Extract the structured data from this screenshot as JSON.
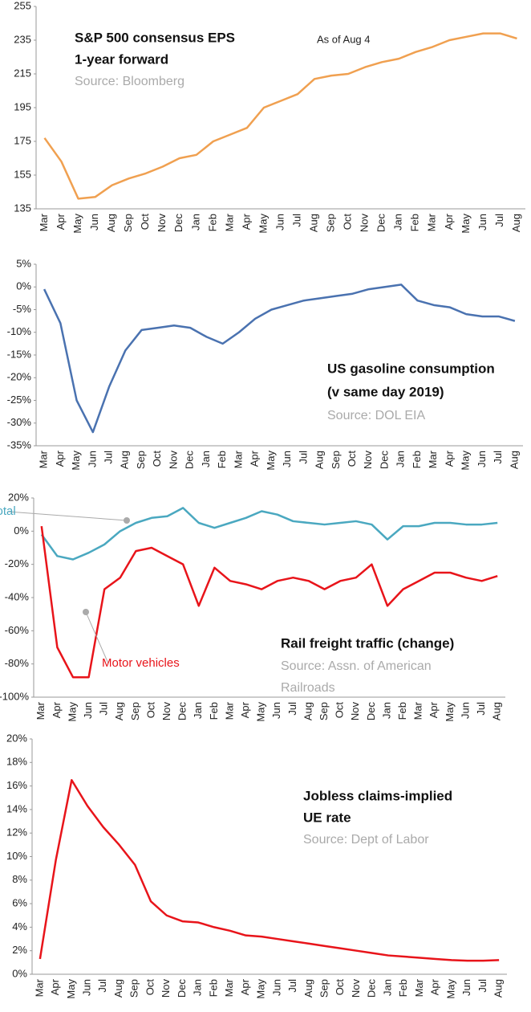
{
  "chart_data": [
    {
      "type": "line",
      "title": [
        "S&P 500 consensus EPS",
        "1-year forward"
      ],
      "source": "Source: Bloomberg",
      "note": "As of Aug 4",
      "categories": [
        "Mar",
        "Apr",
        "May",
        "Jun",
        "Aug",
        "Sep",
        "Oct",
        "Nov",
        "Dec",
        "Jan",
        "Feb",
        "Mar",
        "Apr",
        "May",
        "Jun",
        "Jul",
        "Aug",
        "Sep",
        "Oct",
        "Nov",
        "Dec",
        "Jan",
        "Feb",
        "Mar",
        "Apr",
        "May",
        "Jun",
        "Jul",
        "Aug"
      ],
      "values": [
        177,
        163,
        141,
        142,
        149,
        153,
        156,
        160,
        165,
        167,
        175,
        179,
        183,
        195,
        199,
        203,
        212,
        214,
        215,
        219,
        222,
        224,
        228,
        231,
        235,
        237,
        239,
        239,
        236
      ],
      "color": "#f0a050",
      "ylim": [
        135,
        255
      ],
      "yticks": [
        135,
        155,
        175,
        195,
        215,
        235,
        255
      ]
    },
    {
      "type": "line",
      "title": [
        "US gasoline consumption",
        "(v same day 2019)"
      ],
      "source": "Source: DOL EIA",
      "categories": [
        "Mar",
        "Apr",
        "May",
        "Jun",
        "Jul",
        "Aug",
        "Sep",
        "Oct",
        "Nov",
        "Dec",
        "Jan",
        "Feb",
        "Mar",
        "Apr",
        "May",
        "Jun",
        "Jul",
        "Aug",
        "Sep",
        "Oct",
        "Nov",
        "Dec",
        "Jan",
        "Feb",
        "Mar",
        "Apr",
        "May",
        "Jun",
        "Jul",
        "Aug"
      ],
      "values": [
        -0.5,
        -8,
        -25,
        -32,
        -22,
        -14,
        -9.5,
        -9,
        -8.5,
        -9,
        -11,
        -12.5,
        -10,
        -7,
        -5,
        -4,
        -3,
        -2.5,
        -2,
        -1.5,
        -0.5,
        0,
        0.5,
        -3,
        -4,
        -4.5,
        -6,
        -6.5,
        -6.5,
        -7.5
      ],
      "color": "#4a72b0",
      "ylim": [
        -35,
        5
      ],
      "yticks": [
        {
          "value": 5,
          "label": "5%"
        },
        {
          "value": 0,
          "label": "0%"
        },
        {
          "value": -5,
          "label": "-5%"
        },
        {
          "value": -10,
          "label": "-10%"
        },
        {
          "value": -15,
          "label": "-15%"
        },
        {
          "value": -20,
          "label": "-20%"
        },
        {
          "value": -25,
          "label": "-25%"
        },
        {
          "value": -30,
          "label": "-30%"
        },
        {
          "value": -35,
          "label": "-35%"
        }
      ]
    },
    {
      "type": "line",
      "title": [
        "Rail freight traffic (change)"
      ],
      "source": "Source: Assn. of American",
      "source2": "Railroads",
      "categories": [
        "Mar",
        "Apr",
        "May",
        "Jun",
        "Jul",
        "Aug",
        "Sep",
        "Oct",
        "Nov",
        "Dec",
        "Jan",
        "Feb",
        "Mar",
        "Apr",
        "May",
        "Jun",
        "Jul",
        "Aug",
        "Sep",
        "Oct",
        "Nov",
        "Dec",
        "Jan",
        "Feb",
        "Mar",
        "Apr",
        "May",
        "Jun",
        "Jul",
        "Aug"
      ],
      "series": [
        {
          "name": "Total",
          "color": "#4aa8c0",
          "values": [
            -2,
            -15,
            -17,
            -13,
            -8,
            0,
            5,
            8,
            9,
            14,
            5,
            2,
            5,
            8,
            12,
            10,
            6,
            5,
            4,
            5,
            6,
            4,
            -5,
            3,
            3,
            5,
            5,
            4,
            4,
            5
          ]
        },
        {
          "name": "Motor vehicles",
          "color": "#e8141a",
          "values": [
            3,
            -70,
            -88,
            -88,
            -35,
            -28,
            -12,
            -10,
            -15,
            -20,
            -45,
            -22,
            -30,
            -32,
            -35,
            -30,
            -28,
            -30,
            -35,
            -30,
            -28,
            -20,
            -45,
            -35,
            -30,
            -25,
            -25,
            -28,
            -30,
            -27
          ]
        }
      ],
      "ylim": [
        -100,
        20
      ],
      "yticks": [
        {
          "value": 20,
          "label": "20%"
        },
        {
          "value": 0,
          "label": "0%"
        },
        {
          "value": -20,
          "label": "-20%"
        },
        {
          "value": -40,
          "label": "-40%"
        },
        {
          "value": -60,
          "label": "-60%"
        },
        {
          "value": -80,
          "label": "-80%"
        },
        {
          "value": -100,
          "label": "-100%"
        }
      ]
    },
    {
      "type": "line",
      "title": [
        "Jobless claims-implied",
        "UE rate"
      ],
      "source": "Source: Dept of Labor",
      "categories": [
        "Mar",
        "Apr",
        "May",
        "Jun",
        "Jul",
        "Aug",
        "Sep",
        "Oct",
        "Nov",
        "Dec",
        "Jan",
        "Feb",
        "Mar",
        "Apr",
        "May",
        "Jun",
        "Jul",
        "Aug",
        "Sep",
        "Oct",
        "Nov",
        "Dec",
        "Jan",
        "Feb",
        "Mar",
        "Apr",
        "May",
        "Jun",
        "Jul",
        "Aug"
      ],
      "values": [
        1.3,
        9.7,
        16.5,
        14.3,
        12.5,
        11,
        9.3,
        6.2,
        5,
        4.5,
        4.4,
        4,
        3.7,
        3.3,
        3.2,
        3,
        2.8,
        2.6,
        2.4,
        2.2,
        2,
        1.8,
        1.6,
        1.5,
        1.4,
        1.3,
        1.2,
        1.15,
        1.15,
        1.2
      ],
      "color": "#e8141a",
      "ylim": [
        0,
        20
      ],
      "yticks": [
        {
          "value": 0,
          "label": "0%"
        },
        {
          "value": 2,
          "label": "2%"
        },
        {
          "value": 4,
          "label": "4%"
        },
        {
          "value": 6,
          "label": "6%"
        },
        {
          "value": 8,
          "label": "8%"
        },
        {
          "value": 10,
          "label": "10%"
        },
        {
          "value": 12,
          "label": "12%"
        },
        {
          "value": 14,
          "label": "14%"
        },
        {
          "value": 16,
          "label": "16%"
        },
        {
          "value": 18,
          "label": "18%"
        },
        {
          "value": 20,
          "label": "20%"
        }
      ]
    }
  ]
}
